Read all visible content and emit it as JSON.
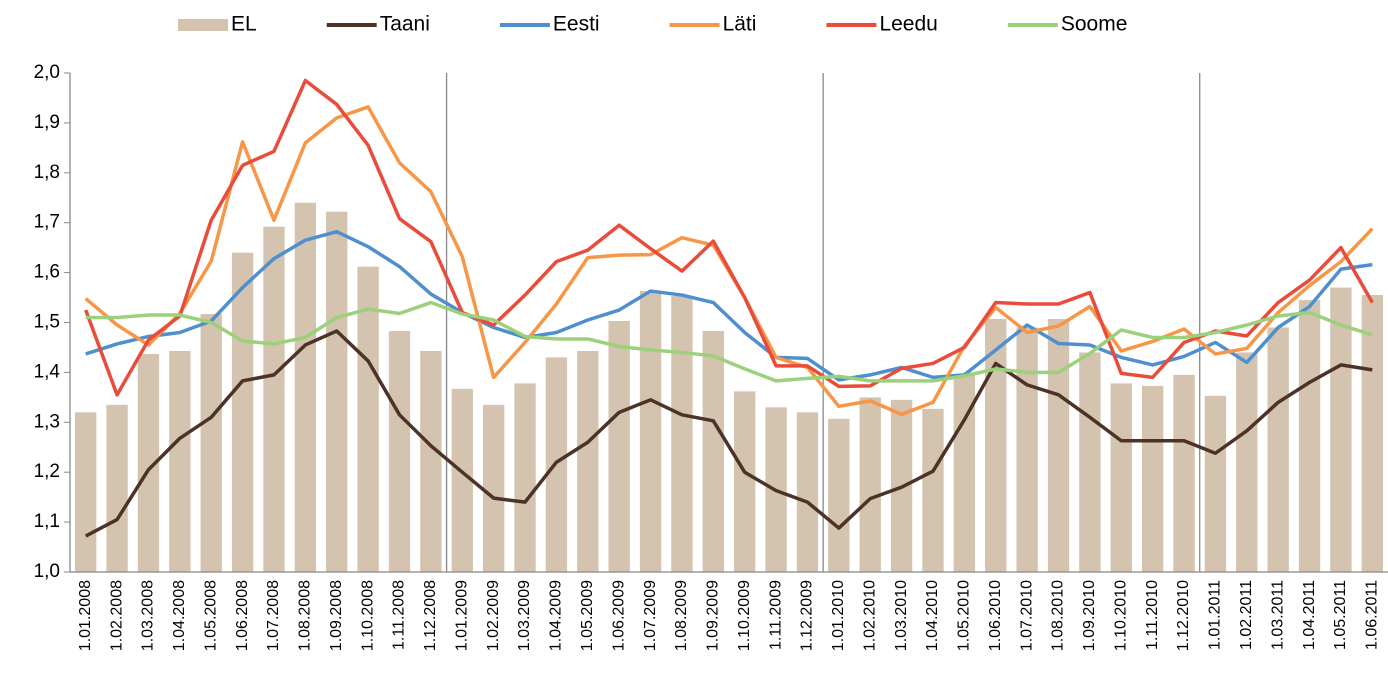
{
  "chart_data": {
    "type": "bar",
    "categories": [
      "1.01.2008",
      "1.02.2008",
      "1.03.2008",
      "1.04.2008",
      "1.05.2008",
      "1.06.2008",
      "1.07.2008",
      "1.08.2008",
      "1.09.2008",
      "1.10.2008",
      "1.11.2008",
      "1.12.2008",
      "1.01.2009",
      "1.02.2009",
      "1.03.2009",
      "1.04.2009",
      "1.05.2009",
      "1.06.2009",
      "1.07.2009",
      "1.08.2009",
      "1.09.2009",
      "1.10.2009",
      "1.11.2009",
      "1.12.2009",
      "1.01.2010",
      "1.02.2010",
      "1.03.2010",
      "1.04.2010",
      "1.05.2010",
      "1.06.2010",
      "1.07.2010",
      "1.08.2010",
      "1.09.2010",
      "1.10.2010",
      "1.11.2010",
      "1.12.2010",
      "1.01.2011",
      "1.02.2011",
      "1.03.2011",
      "1.04.2011",
      "1.05.2011",
      "1.06.2011"
    ],
    "series": [
      {
        "name": "EL",
        "type": "bar",
        "color": "#d3c3af",
        "values": [
          1.32,
          1.335,
          1.437,
          1.443,
          1.517,
          1.64,
          1.692,
          1.74,
          1.722,
          1.612,
          1.483,
          1.443,
          1.367,
          1.335,
          1.378,
          1.43,
          1.443,
          1.503,
          1.563,
          1.553,
          1.483,
          1.362,
          1.33,
          1.32,
          1.307,
          1.35,
          1.345,
          1.327,
          1.397,
          1.507,
          1.49,
          1.507,
          1.44,
          1.378,
          1.373,
          1.395,
          1.353,
          1.44,
          1.49,
          1.545,
          1.57,
          1.555
        ]
      },
      {
        "name": "Taani",
        "type": "line",
        "color": "#4d3327",
        "values": [
          1.072,
          1.105,
          1.205,
          1.268,
          1.31,
          1.383,
          1.395,
          1.455,
          1.483,
          1.423,
          1.315,
          1.253,
          1.2,
          1.148,
          1.14,
          1.22,
          1.26,
          1.32,
          1.345,
          1.315,
          1.303,
          1.2,
          1.163,
          1.14,
          1.088,
          1.147,
          1.17,
          1.202,
          1.305,
          1.418,
          1.375,
          1.355,
          1.31,
          1.263,
          1.263,
          1.263,
          1.238,
          1.283,
          1.34,
          1.38,
          1.415,
          1.405
        ]
      },
      {
        "name": "Eesti",
        "type": "line",
        "color": "#4f8fcf",
        "values": [
          1.437,
          1.457,
          1.472,
          1.48,
          1.503,
          1.57,
          1.628,
          1.665,
          1.682,
          1.652,
          1.612,
          1.557,
          1.52,
          1.49,
          1.47,
          1.48,
          1.505,
          1.525,
          1.563,
          1.555,
          1.54,
          1.48,
          1.43,
          1.428,
          1.385,
          1.395,
          1.41,
          1.39,
          1.395,
          1.445,
          1.495,
          1.458,
          1.455,
          1.43,
          1.415,
          1.432,
          1.46,
          1.42,
          1.49,
          1.532,
          1.607,
          1.616
        ]
      },
      {
        "name": "Läti",
        "type": "line",
        "color": "#f79646",
        "values": [
          1.548,
          1.495,
          1.455,
          1.518,
          1.623,
          1.862,
          1.705,
          1.86,
          1.91,
          1.932,
          1.82,
          1.762,
          1.632,
          1.39,
          1.46,
          1.537,
          1.63,
          1.635,
          1.636,
          1.67,
          1.655,
          1.55,
          1.43,
          1.41,
          1.332,
          1.343,
          1.316,
          1.34,
          1.453,
          1.53,
          1.48,
          1.493,
          1.532,
          1.443,
          1.462,
          1.487,
          1.437,
          1.448,
          1.52,
          1.574,
          1.622,
          1.688
        ]
      },
      {
        "name": "Leedu",
        "type": "line",
        "color": "#e94c3a",
        "values": [
          1.525,
          1.355,
          1.465,
          1.513,
          1.705,
          1.815,
          1.843,
          1.985,
          1.937,
          1.855,
          1.708,
          1.662,
          1.52,
          1.495,
          1.555,
          1.622,
          1.645,
          1.695,
          1.648,
          1.603,
          1.663,
          1.55,
          1.413,
          1.413,
          1.372,
          1.373,
          1.408,
          1.418,
          1.45,
          1.54,
          1.537,
          1.537,
          1.56,
          1.398,
          1.39,
          1.46,
          1.483,
          1.473,
          1.54,
          1.585,
          1.65,
          1.54
        ]
      },
      {
        "name": "Soome",
        "type": "line",
        "color": "#9bd17a",
        "values": [
          1.51,
          1.51,
          1.515,
          1.515,
          1.5,
          1.463,
          1.457,
          1.47,
          1.51,
          1.527,
          1.518,
          1.54,
          1.517,
          1.505,
          1.472,
          1.467,
          1.467,
          1.452,
          1.445,
          1.44,
          1.433,
          1.407,
          1.383,
          1.388,
          1.392,
          1.383,
          1.383,
          1.383,
          1.393,
          1.407,
          1.4,
          1.4,
          1.438,
          1.485,
          1.47,
          1.47,
          1.48,
          1.495,
          1.513,
          1.52,
          1.495,
          1.475
        ]
      }
    ],
    "ylim": [
      1.0,
      2.0
    ],
    "yticks": [
      {
        "value": 1.0,
        "label": "1,0"
      },
      {
        "value": 1.1,
        "label": "1,1"
      },
      {
        "value": 1.2,
        "label": "1,2"
      },
      {
        "value": 1.3,
        "label": "1,3"
      },
      {
        "value": 1.4,
        "label": "1,4"
      },
      {
        "value": 1.5,
        "label": "1,5"
      },
      {
        "value": 1.6,
        "label": "1,6"
      },
      {
        "value": 1.7,
        "label": "1,7"
      },
      {
        "value": 1.8,
        "label": "1,8"
      },
      {
        "value": 1.9,
        "label": "1,9"
      },
      {
        "value": 2.0,
        "label": "2,0"
      }
    ],
    "legend": "top"
  }
}
